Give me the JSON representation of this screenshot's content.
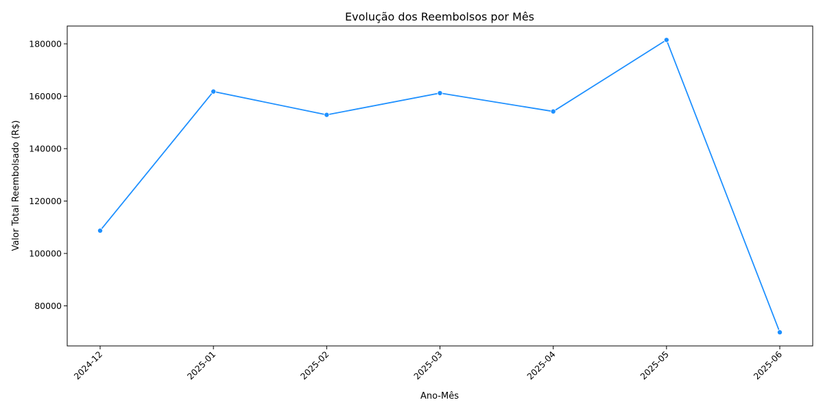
{
  "chart_data": {
    "type": "line",
    "title": "Evolução dos Reembolsos por Mês",
    "xlabel": "Ano-Mês",
    "ylabel": "Valor Total Reembolsado (R$)",
    "categories": [
      "2024-12",
      "2025-01",
      "2025-02",
      "2025-03",
      "2025-04",
      "2025-05",
      "2025-06"
    ],
    "series": [
      {
        "values": [
          108700,
          161800,
          152900,
          161200,
          154200,
          181500,
          69900
        ],
        "color": "#1e90ff",
        "marker": "circle"
      }
    ],
    "yticks": [
      80000,
      100000,
      120000,
      140000,
      160000,
      180000
    ],
    "ylim": [
      64700,
      186800
    ],
    "grid": false,
    "legend": "none"
  }
}
